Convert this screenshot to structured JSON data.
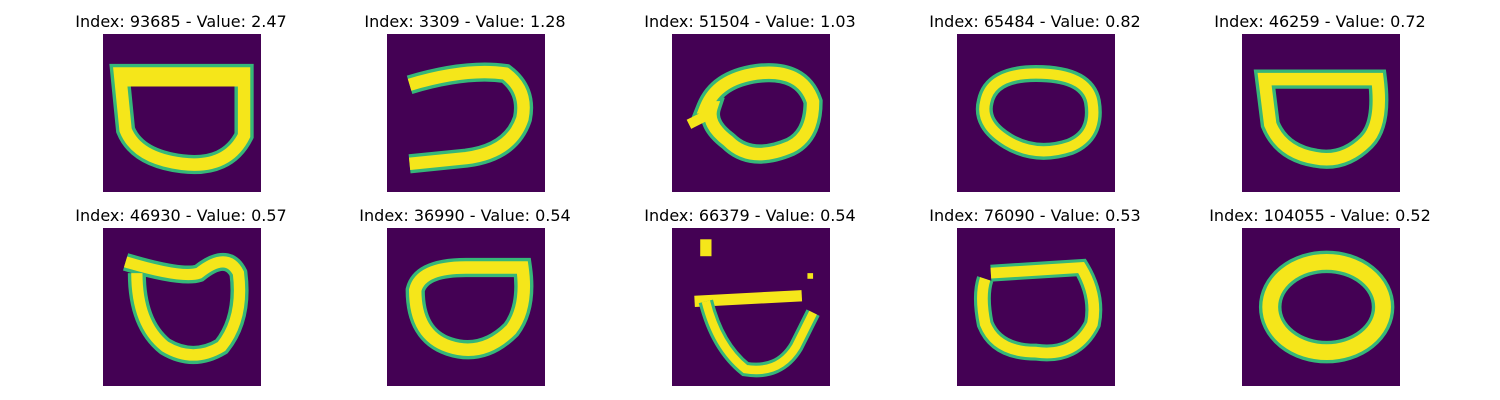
{
  "panels": [
    {
      "title": "Index: 93685 - Value: 2.47",
      "image": "yellow-green digit zero glyph"
    },
    {
      "title": "Index: 3309 - Value: 1.28",
      "image": "yellow-green digit zero glyph"
    },
    {
      "title": "Index: 51504 - Value: 1.03",
      "image": "yellow-green digit zero glyph"
    },
    {
      "title": "Index: 65484 - Value: 0.82",
      "image": "yellow-green digit zero glyph"
    },
    {
      "title": "Index: 46259 - Value: 0.72",
      "image": "yellow-green digit zero glyph"
    },
    {
      "title": "Index: 46930 - Value: 0.57",
      "image": "yellow-green digit zero glyph"
    },
    {
      "title": "Index: 36990 - Value: 0.54",
      "image": "yellow-green digit zero glyph"
    },
    {
      "title": "Index: 66379 - Value: 0.54",
      "image": "yellow-green digit zero glyph"
    },
    {
      "title": "Index: 76090 - Value: 0.53",
      "image": "yellow-green digit zero glyph"
    },
    {
      "title": "Index: 104055 - Value: 0.52",
      "image": "yellow-green digit zero glyph"
    }
  ],
  "colors": {
    "background": "#440154",
    "stroke": "#e8e418",
    "edge": "#35b779"
  }
}
